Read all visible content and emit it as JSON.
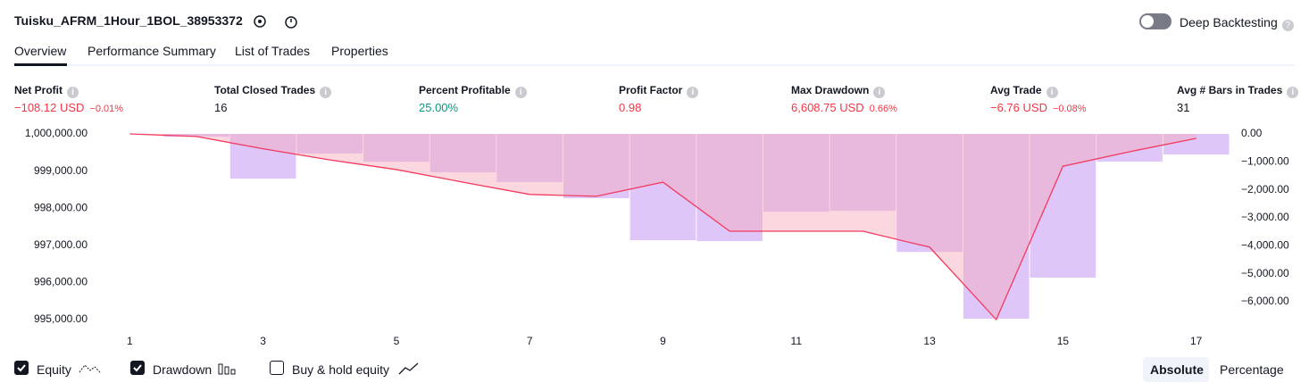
{
  "header": {
    "title": "Tuisku_AFRM_1Hour_1BOL_38953372",
    "deep_backtesting": "Deep Backtesting"
  },
  "tabs": [
    "Overview",
    "Performance Summary",
    "List of Trades",
    "Properties"
  ],
  "metrics": [
    {
      "label": "Net Profit",
      "value": "−108.12 USD",
      "extra": "−0.01%"
    },
    {
      "label": "Total Closed Trades",
      "value": "16"
    },
    {
      "label": "Percent Profitable",
      "value": "25.00%"
    },
    {
      "label": "Profit Factor",
      "value": "0.98"
    },
    {
      "label": "Max Drawdown",
      "value": "6,608.75 USD",
      "extra": "0.66%"
    },
    {
      "label": "Avg Trade",
      "value": "−6.76 USD",
      "extra": "−0.08%"
    },
    {
      "label": "Avg # Bars in Trades",
      "value": "31"
    }
  ],
  "chart_data": {
    "type": "bar-line",
    "x": [
      1,
      2,
      3,
      4,
      5,
      6,
      7,
      8,
      9,
      10,
      11,
      12,
      13,
      14,
      15,
      16,
      17
    ],
    "xlim": [
      0.5,
      17.5
    ],
    "xticks": [
      1,
      3,
      5,
      7,
      9,
      11,
      13,
      15,
      17
    ],
    "ylim": [
      994832,
      1000120
    ],
    "yticks": [
      {
        "value": 1000000,
        "label": "1,000,000.00"
      },
      {
        "value": 999000,
        "label": "999,000.00"
      },
      {
        "value": 998000,
        "label": "998,000.00"
      },
      {
        "value": 997000,
        "label": "997,000.00"
      },
      {
        "value": 996000,
        "label": "996,000.00"
      },
      {
        "value": 995000,
        "label": "995,000.00"
      }
    ],
    "y2lim": [
      -6862,
      160
    ],
    "y2ticks": [
      {
        "value": 0,
        "label": "0.00"
      },
      {
        "value": -1000,
        "label": "−1,000.00"
      },
      {
        "value": -2000,
        "label": "−2,000.00"
      },
      {
        "value": -3000,
        "label": "−3,000.00"
      },
      {
        "value": -4000,
        "label": "−4,000.00"
      },
      {
        "value": -5000,
        "label": "−5,000.00"
      },
      {
        "value": -6000,
        "label": "−6,000.00"
      }
    ],
    "series": [
      {
        "name": "Equity",
        "color": "#f23a5e",
        "values": [
          1000000,
          999930,
          999600,
          999300,
          999040,
          998700,
          998370,
          998320,
          998700,
          997380,
          997380,
          997380,
          996950,
          995000,
          999130,
          999520,
          999880
        ]
      },
      {
        "name": "Drawdown",
        "color": "#d4b3f7",
        "axis": "y2",
        "values": [
          0,
          -100,
          -1600,
          -700,
          -1000,
          -1370,
          -1720,
          -2300,
          -3800,
          -3830,
          -2780,
          -2750,
          -4220,
          -6608.75,
          -5140,
          -990,
          -735
        ]
      }
    ]
  },
  "footer": {
    "buy_hold": "Buy & hold equity",
    "modes": [
      "Absolute",
      "Percentage"
    ]
  }
}
